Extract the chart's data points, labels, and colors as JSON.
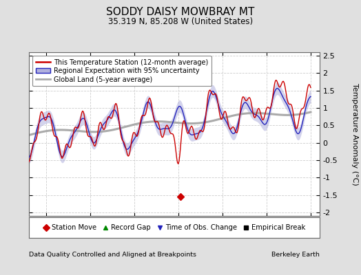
{
  "title": "SODDY DAISY MOWBRAY MT",
  "subtitle": "35.319 N, 85.208 W (United States)",
  "ylabel": "Temperature Anomaly (°C)",
  "xlabel_left": "Data Quality Controlled and Aligned at Breakpoints",
  "xlabel_right": "Berkeley Earth",
  "ylim": [
    -2.1,
    2.6
  ],
  "xlim": [
    1983.0,
    2016.0
  ],
  "xticks": [
    1985,
    1990,
    1995,
    2000,
    2005,
    2010,
    2015
  ],
  "yticks": [
    -2,
    -1.5,
    -1,
    -0.5,
    0,
    0.5,
    1,
    1.5,
    2,
    2.5
  ],
  "bg_color": "#e0e0e0",
  "plot_bg_color": "#ffffff",
  "red_color": "#cc0000",
  "blue_color": "#2222bb",
  "blue_fill_color": "#b0b0dd",
  "gray_color": "#aaaaaa",
  "legend_items": [
    "This Temperature Station (12-month average)",
    "Regional Expectation with 95% uncertainty",
    "Global Land (5-year average)"
  ],
  "bottom_legend": [
    {
      "label": "Station Move",
      "color": "#cc0000",
      "marker": "D"
    },
    {
      "label": "Record Gap",
      "color": "#008800",
      "marker": "^"
    },
    {
      "label": "Time of Obs. Change",
      "color": "#2222bb",
      "marker": "v"
    },
    {
      "label": "Empirical Break",
      "color": "#000000",
      "marker": "s"
    }
  ],
  "station_move_year": 2000.25,
  "station_move_y": -1.55
}
